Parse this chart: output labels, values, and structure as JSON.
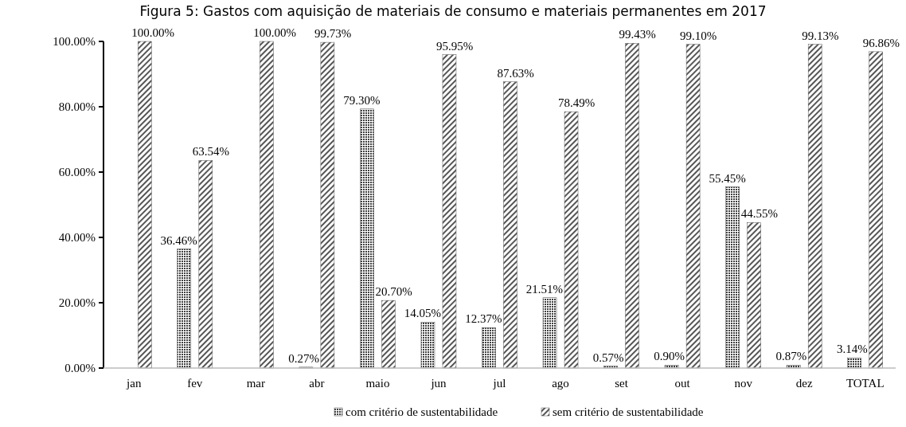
{
  "chart_data": {
    "type": "bar",
    "title": "Figura 5: Gastos com aquisição de materiais de consumo e materiais permanentes em 2017",
    "categories": [
      "jan",
      "fev",
      "mar",
      "abr",
      "maio",
      "jun",
      "jul",
      "ago",
      "set",
      "out",
      "nov",
      "dez",
      "TOTAL"
    ],
    "series": [
      {
        "name": "com critério de sustentabilidade",
        "color": "#404040",
        "values": [
          0,
          36.46,
          0,
          0.27,
          79.3,
          14.05,
          12.37,
          21.51,
          0.57,
          0.9,
          55.45,
          0.87,
          3.14
        ],
        "value_labels": [
          null,
          "36.46%",
          null,
          "0.27%",
          "79.30%",
          "14.05%",
          "12.37%",
          "21.51%",
          "0.57%",
          "0.90%",
          "55.45%",
          "0.87%",
          "3.14%"
        ]
      },
      {
        "name": "sem critério de sustentabilidade",
        "color": "#555555",
        "values": [
          100,
          63.54,
          100,
          99.73,
          20.7,
          95.95,
          87.63,
          78.49,
          99.43,
          99.1,
          44.55,
          99.13,
          96.86
        ],
        "value_labels": [
          "100.00%",
          "63.54%",
          "100.00%",
          "99.73%",
          "20.70%",
          "95.95%",
          "87.63%",
          "78.49%",
          "99.43%",
          "99.10%",
          "44.55%",
          "99.13%",
          "96.86%"
        ]
      }
    ],
    "ylim": [
      0,
      100
    ],
    "yticks": [
      {
        "value": 0,
        "label": "0.00%"
      },
      {
        "value": 20,
        "label": "20.00%"
      },
      {
        "value": 40,
        "label": "40.00%"
      },
      {
        "value": 60,
        "label": "60.00%"
      },
      {
        "value": 80,
        "label": "80.00%"
      },
      {
        "value": 100,
        "label": "100.00%"
      }
    ],
    "grid": false,
    "legend": "bottom"
  }
}
